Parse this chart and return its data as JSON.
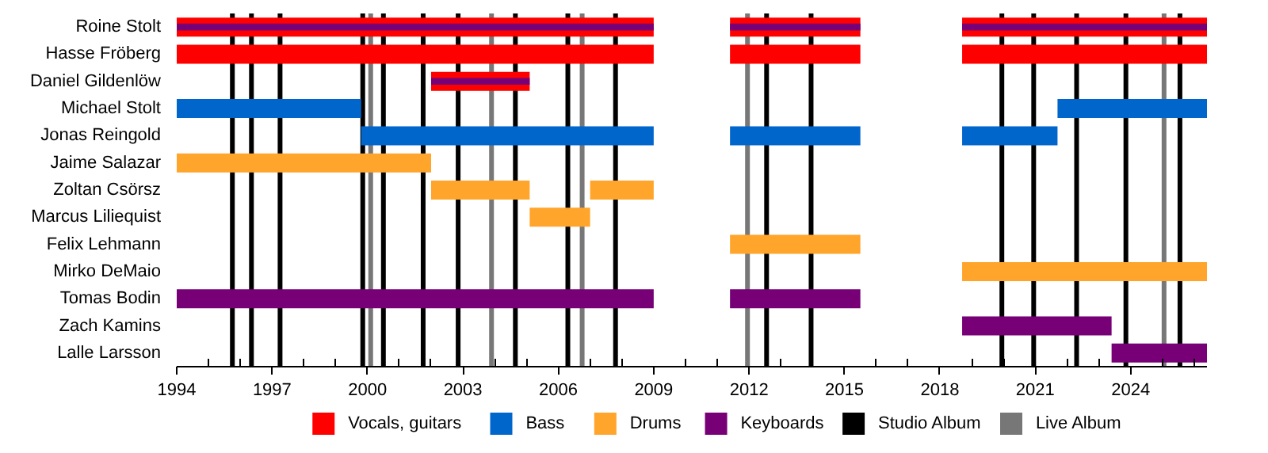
{
  "chart_data": {
    "type": "bar",
    "orientation": "horizontal",
    "categories": [
      "Roine Stolt",
      "Hasse Fröberg",
      "Daniel Gildenlöw",
      "Michael Stolt",
      "Jonas Reingold",
      "Jaime Salazar",
      "Zoltan Csörsz",
      "Marcus Liliequist",
      "Felix Lehmann",
      "Mirko DeMaio",
      "Tomas Bodin",
      "Zach Kamins",
      "Lalle Larsson"
    ],
    "series": [
      {
        "name": "Vocals, guitars",
        "color": "#ff0000",
        "base": [
          1994,
          1994,
          2002,
          null,
          null,
          null,
          null,
          null,
          null,
          null,
          null,
          null,
          null
        ],
        "values": [
          15,
          15,
          3.1,
          null,
          null,
          null,
          null,
          null,
          null,
          null,
          null,
          null,
          null
        ]
      },
      {
        "color": "#ff0000",
        "base": [
          2011.4,
          2011.4,
          null,
          null,
          null,
          null,
          null,
          null,
          null,
          null,
          null,
          null,
          null
        ],
        "values": [
          4.1,
          4.1,
          null,
          null,
          null,
          null,
          null,
          null,
          null,
          null,
          null,
          null,
          null
        ]
      },
      {
        "color": "#ff0000",
        "base": [
          2018.7,
          2018.7,
          null,
          null,
          null,
          null,
          null,
          null,
          null,
          null,
          null,
          null,
          null
        ],
        "values": [
          7.7,
          7.7,
          null,
          null,
          null,
          null,
          null,
          null,
          null,
          null,
          null,
          null,
          null
        ]
      },
      {
        "name": "Bass",
        "color": "#0066cc",
        "base": [
          null,
          null,
          null,
          1994,
          1999.8,
          null,
          null,
          null,
          null,
          null,
          null,
          null,
          null
        ],
        "values": [
          null,
          null,
          null,
          5.8,
          9.2,
          null,
          null,
          null,
          null,
          null,
          null,
          null,
          null
        ]
      },
      {
        "color": "#0066cc",
        "base": [
          null,
          null,
          null,
          2021.7,
          2011.4,
          null,
          null,
          null,
          null,
          null,
          null,
          null,
          null
        ],
        "values": [
          null,
          null,
          null,
          4.7,
          4.1,
          null,
          null,
          null,
          null,
          null,
          null,
          null,
          null
        ]
      },
      {
        "color": "#0066cc",
        "base": [
          null,
          null,
          null,
          null,
          2018.7,
          null,
          null,
          null,
          null,
          null,
          null,
          null,
          null
        ],
        "values": [
          null,
          null,
          null,
          null,
          3.0,
          null,
          null,
          null,
          null,
          null,
          null,
          null,
          null
        ]
      },
      {
        "name": "Drums",
        "color": "#ffa52c",
        "base": [
          null,
          null,
          null,
          null,
          null,
          1994,
          2002,
          2005.1,
          2011.4,
          2018.7,
          null,
          null,
          null
        ],
        "values": [
          null,
          null,
          null,
          null,
          null,
          8,
          3.1,
          1.9,
          4.1,
          7.7,
          null,
          null,
          null
        ]
      },
      {
        "color": "#ffa52c",
        "base": [
          null,
          null,
          null,
          null,
          null,
          null,
          2007,
          null,
          null,
          null,
          null,
          null,
          null
        ],
        "values": [
          null,
          null,
          null,
          null,
          null,
          null,
          2,
          null,
          null,
          null,
          null,
          null,
          null
        ]
      },
      {
        "name": "Keyboards",
        "color": "#770077",
        "base": [
          1994,
          null,
          2002,
          null,
          null,
          null,
          null,
          null,
          null,
          null,
          1994,
          2018.7,
          2023.4
        ],
        "values": [
          15,
          null,
          3.1,
          null,
          null,
          null,
          null,
          null,
          null,
          null,
          15,
          4.7,
          3.0
        ]
      },
      {
        "color": "#770077",
        "base": [
          2011.4,
          null,
          null,
          null,
          null,
          null,
          null,
          null,
          null,
          null,
          2011.4,
          null,
          null
        ],
        "values": [
          4.1,
          null,
          null,
          null,
          null,
          null,
          null,
          null,
          null,
          null,
          4.1,
          null,
          null
        ]
      },
      {
        "color": "#770077",
        "base": [
          2018.7,
          null,
          null,
          null,
          null,
          null,
          null,
          null,
          null,
          null,
          null,
          null,
          null
        ],
        "values": [
          7.7,
          null,
          null,
          null,
          null,
          null,
          null,
          null,
          null,
          null,
          null,
          null,
          null
        ]
      }
    ],
    "ref_lines": [
      {
        "axis": "x",
        "value": 1995.75,
        "label": "Studio Album",
        "color": "#000000"
      },
      {
        "axis": "x",
        "value": 1996.35,
        "color": "#000000"
      },
      {
        "axis": "x",
        "value": 1997.25,
        "color": "#000000"
      },
      {
        "axis": "x",
        "value": 1999.85,
        "color": "#000000"
      },
      {
        "axis": "x",
        "value": 2000.5,
        "color": "#000000"
      },
      {
        "axis": "x",
        "value": 2001.75,
        "color": "#000000"
      },
      {
        "axis": "x",
        "value": 2002.85,
        "color": "#000000"
      },
      {
        "axis": "x",
        "value": 2004.65,
        "color": "#000000"
      },
      {
        "axis": "x",
        "value": 2006.3,
        "color": "#000000"
      },
      {
        "axis": "x",
        "value": 2007.8,
        "color": "#000000"
      },
      {
        "axis": "x",
        "value": 2012.55,
        "color": "#000000"
      },
      {
        "axis": "x",
        "value": 2013.95,
        "color": "#000000"
      },
      {
        "axis": "x",
        "value": 2019.95,
        "color": "#000000"
      },
      {
        "axis": "x",
        "value": 2020.95,
        "color": "#000000"
      },
      {
        "axis": "x",
        "value": 2022.3,
        "color": "#000000"
      },
      {
        "axis": "x",
        "value": 2023.85,
        "color": "#000000"
      },
      {
        "axis": "x",
        "value": 2025.55,
        "color": "#000000"
      },
      {
        "axis": "x",
        "value": 2000.1,
        "label": "Live Album",
        "color": "#777777"
      },
      {
        "axis": "x",
        "value": 2003.9,
        "color": "#777777"
      },
      {
        "axis": "x",
        "value": 2006.75,
        "color": "#777777"
      },
      {
        "axis": "x",
        "value": 2011.95,
        "color": "#777777"
      },
      {
        "axis": "x",
        "value": 2025.05,
        "color": "#777777"
      }
    ],
    "xlim": [
      1994,
      2026.4
    ],
    "xticks": [
      1994,
      {
        "value": 1995,
        "label": null
      },
      {
        "value": 1996,
        "label": null
      },
      1997,
      {
        "value": 1998,
        "label": null
      },
      {
        "value": 1999,
        "label": null
      },
      2000,
      {
        "value": 2001,
        "label": null
      },
      {
        "value": 2002,
        "label": null
      },
      2003,
      {
        "value": 2004,
        "label": null
      },
      {
        "value": 2005,
        "label": null
      },
      2006,
      {
        "value": 2007,
        "label": null
      },
      {
        "value": 2008,
        "label": null
      },
      2009,
      {
        "value": 2010,
        "label": null
      },
      {
        "value": 2011,
        "label": null
      },
      2012,
      {
        "value": 2013,
        "label": null
      },
      {
        "value": 2014,
        "label": null
      },
      2015,
      {
        "value": 2016,
        "label": null
      },
      {
        "value": 2017,
        "label": null
      },
      2018,
      {
        "value": 2019,
        "label": null
      },
      {
        "value": 2020,
        "label": null
      },
      2021,
      {
        "value": 2022,
        "label": null
      },
      {
        "value": 2023,
        "label": null
      },
      2024,
      {
        "value": 2025,
        "label": null
      },
      {
        "value": 2026,
        "label": null
      }
    ],
    "grid": false,
    "legend": "bottom"
  }
}
